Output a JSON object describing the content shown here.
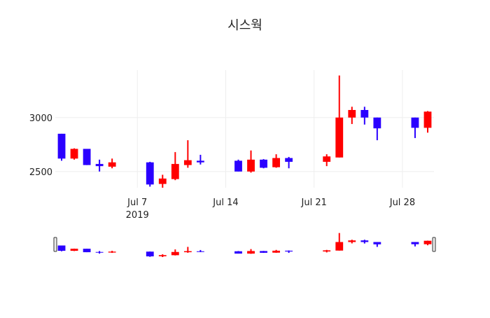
{
  "chart_data": {
    "type": "candlestick",
    "title": "시스웍",
    "x": [
      "2019-07-01",
      "2019-07-02",
      "2019-07-03",
      "2019-07-04",
      "2019-07-05",
      "2019-07-08",
      "2019-07-09",
      "2019-07-10",
      "2019-07-11",
      "2019-07-12",
      "2019-07-15",
      "2019-07-16",
      "2019-07-17",
      "2019-07-18",
      "2019-07-19",
      "2019-07-22",
      "2019-07-23",
      "2019-07-24",
      "2019-07-25",
      "2019-07-26",
      "2019-07-29",
      "2019-07-30"
    ],
    "open": [
      2850,
      2620,
      2710,
      2570,
      2545,
      2585,
      2385,
      2430,
      2560,
      2600,
      2600,
      2500,
      2610,
      2540,
      2625,
      2590,
      2630,
      3000,
      3070,
      3000,
      3000,
      2905
    ],
    "high": [
      2850,
      2715,
      2710,
      2610,
      2620,
      2590,
      2470,
      2680,
      2790,
      2655,
      2610,
      2695,
      2615,
      2660,
      2635,
      2660,
      3390,
      3100,
      3100,
      3000,
      3000,
      3060
    ],
    "low": [
      2600,
      2610,
      2560,
      2500,
      2530,
      2360,
      2350,
      2420,
      2535,
      2565,
      2500,
      2490,
      2530,
      2535,
      2530,
      2550,
      2630,
      2940,
      2935,
      2790,
      2810,
      2860
    ],
    "close": [
      2620,
      2710,
      2560,
      2550,
      2585,
      2380,
      2435,
      2570,
      2605,
      2585,
      2500,
      2610,
      2535,
      2625,
      2590,
      2640,
      3000,
      3070,
      3000,
      2900,
      2905,
      3055
    ],
    "increasing_color": "#ff0000",
    "decreasing_color": "#2a00ff",
    "xlim": [
      "2019-06-30T12:00:00Z",
      "2019-07-30T12:00:00Z"
    ],
    "xticks": [
      {
        "value": "2019-07-07",
        "label": "Jul 7"
      },
      {
        "value": "2019-07-14",
        "label": "Jul 14"
      },
      {
        "value": "2019-07-21",
        "label": "Jul 21"
      },
      {
        "value": "2019-07-28",
        "label": "Jul 28"
      }
    ],
    "xtick_year": "2019",
    "ylim": [
      2350,
      3440
    ],
    "yticks": [
      2500,
      3000
    ],
    "grid": true,
    "rangeslider": true
  }
}
